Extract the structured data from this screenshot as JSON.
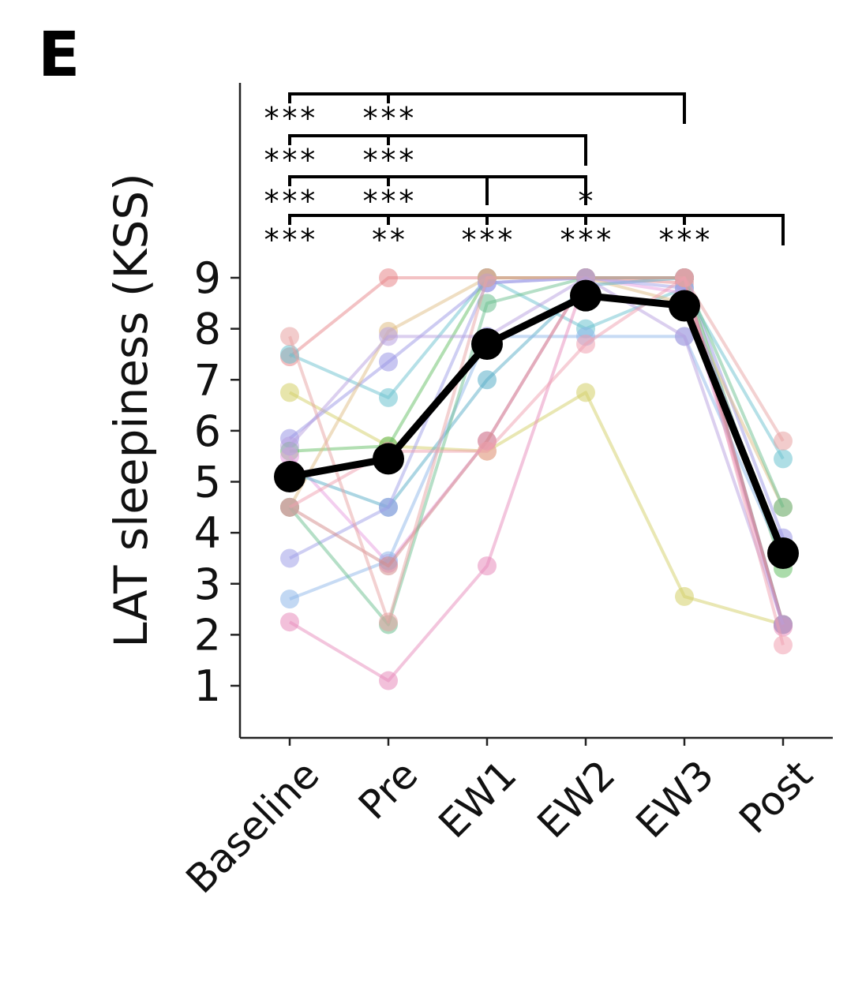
{
  "panel_label": "E",
  "chart_data": {
    "type": "line",
    "ylabel": "LAT sleepiness (KSS)",
    "xlabel": "",
    "categories": [
      "Baseline",
      "Pre",
      "EW1",
      "EW2",
      "EW3",
      "Post"
    ],
    "yticks": [
      1,
      2,
      3,
      4,
      5,
      6,
      7,
      8,
      9
    ],
    "ylim": [
      0,
      9
    ],
    "grid": false,
    "mean": {
      "color": "#000000",
      "values": [
        5.1,
        5.45,
        7.7,
        8.65,
        8.45,
        3.6
      ]
    },
    "subjects": [
      {
        "color": "#e8868a",
        "values": [
          7.45,
          9.0,
          9.0,
          9.0,
          8.9,
          2.2
        ]
      },
      {
        "color": "#6cc2cf",
        "values": [
          7.5,
          6.65,
          9.0,
          8.0,
          8.8,
          5.45
        ]
      },
      {
        "color": "#d4d067",
        "values": [
          6.75,
          5.7,
          5.6,
          6.75,
          2.75,
          2.2
        ]
      },
      {
        "color": "#9b97e6",
        "values": [
          5.85,
          7.35,
          8.9,
          9.0,
          9.0,
          3.9
        ]
      },
      {
        "color": "#66bf66",
        "values": [
          5.6,
          5.7,
          9.0,
          9.0,
          9.0,
          3.3
        ]
      },
      {
        "color": "#e79de0",
        "values": [
          5.5,
          3.4,
          5.8,
          9.0,
          8.7,
          2.2
        ]
      },
      {
        "color": "#e0be85",
        "values": [
          4.5,
          7.95,
          9.0,
          9.0,
          8.5,
          4.5
        ]
      },
      {
        "color": "#5aaec8",
        "values": [
          5.2,
          4.5,
          7.0,
          8.85,
          9.0,
          2.2
        ]
      },
      {
        "color": "#8fb8ea",
        "values": [
          2.7,
          3.45,
          7.85,
          7.85,
          7.85,
          3.5
        ]
      },
      {
        "color": "#a0a0e8",
        "values": [
          3.5,
          4.5,
          8.9,
          9.0,
          8.8,
          3.5
        ]
      },
      {
        "color": "#e88cbc",
        "values": [
          2.25,
          1.1,
          3.35,
          9.0,
          9.0,
          2.15
        ]
      },
      {
        "color": "#d48a8a",
        "values": [
          4.5,
          3.35,
          5.8,
          9.0,
          9.0,
          2.2
        ]
      },
      {
        "color": "#6bbf90",
        "values": [
          4.5,
          2.2,
          8.5,
          9.0,
          9.0,
          4.5
        ]
      },
      {
        "color": "#e8a3a3",
        "values": [
          7.85,
          2.25,
          9.0,
          9.0,
          9.0,
          5.8
        ]
      },
      {
        "color": "#b8a0e0",
        "values": [
          5.7,
          7.85,
          7.85,
          9.0,
          7.85,
          2.2
        ]
      },
      {
        "color": "#f0a0b0",
        "values": [
          4.5,
          5.6,
          5.6,
          7.7,
          9.0,
          1.8
        ]
      }
    ],
    "significance": [
      {
        "from": 0,
        "to": 4,
        "labels": [
          {
            "pos": 0,
            "text": "***"
          },
          {
            "pos": 1,
            "text": "***"
          }
        ],
        "drop_ticks": [
          0,
          1,
          4
        ]
      },
      {
        "from": 0,
        "to": 3,
        "labels": [
          {
            "pos": 0,
            "text": "***"
          },
          {
            "pos": 1,
            "text": "***"
          }
        ],
        "drop_ticks": [
          0,
          1,
          3
        ]
      },
      {
        "from": 0,
        "to": 3,
        "labels": [
          {
            "pos": 0,
            "text": "***"
          },
          {
            "pos": 1,
            "text": "***"
          },
          {
            "pos": 3,
            "text": "*"
          }
        ],
        "drop_ticks": [
          0,
          1,
          2,
          3
        ]
      },
      {
        "from": 0,
        "to": 5,
        "labels": [
          {
            "pos": 0,
            "text": "***"
          },
          {
            "pos": 1,
            "text": "**"
          },
          {
            "pos": 2,
            "text": "***"
          },
          {
            "pos": 3,
            "text": "***"
          },
          {
            "pos": 4,
            "text": "***"
          }
        ],
        "drop_ticks": [
          0,
          1,
          2,
          3,
          4,
          5
        ]
      }
    ]
  }
}
